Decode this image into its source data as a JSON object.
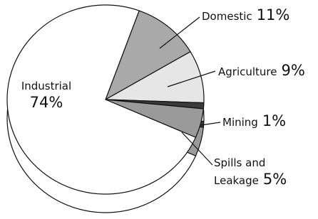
{
  "chart_data": {
    "type": "pie",
    "categories": [
      "Domestic",
      "Agriculture",
      "Mining",
      "Spills and Leakage",
      "Industrial"
    ],
    "values": [
      11,
      9,
      1,
      5,
      74
    ],
    "value_labels": [
      "11%",
      "9%",
      "1%",
      "5%",
      "74%"
    ],
    "colors": [
      "#a9a9a9",
      "#e6e6e6",
      "#3a3a3a",
      "#9a9a9a",
      "#ffffff"
    ]
  }
}
